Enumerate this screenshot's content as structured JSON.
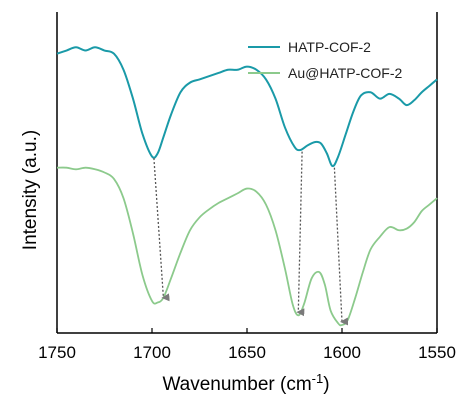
{
  "chart_data": {
    "type": "line",
    "xlabel": "Wavenumber (cm",
    "xlabel_superscript": "-1",
    "xlabel_suffix": ")",
    "ylabel": "Intensity (a.u.)",
    "xlim": [
      1750,
      1550
    ],
    "x_reversed": true,
    "ylim": [
      0,
      1
    ],
    "x_ticks": [
      "1750",
      "1700",
      "1650",
      "1600",
      "1550"
    ],
    "y_ticks_labeled": false,
    "grid": false,
    "legend_position": "top-right",
    "series": [
      {
        "name": "HATP-COF-2",
        "color": "#1a9aa8",
        "x": [
          1750,
          1745,
          1740,
          1735,
          1730,
          1725,
          1720,
          1715,
          1710,
          1705,
          1700,
          1697,
          1694,
          1690,
          1685,
          1680,
          1675,
          1670,
          1665,
          1660,
          1655,
          1650,
          1645,
          1640,
          1635,
          1630,
          1625,
          1622,
          1618,
          1614,
          1611,
          1608,
          1605,
          1602,
          1598,
          1594,
          1590,
          1585,
          1580,
          1575,
          1570,
          1566,
          1562,
          1558,
          1554,
          1550
        ],
        "y": [
          0.87,
          0.88,
          0.89,
          0.88,
          0.89,
          0.88,
          0.87,
          0.82,
          0.73,
          0.62,
          0.55,
          0.56,
          0.61,
          0.68,
          0.75,
          0.78,
          0.79,
          0.8,
          0.81,
          0.82,
          0.82,
          0.83,
          0.82,
          0.79,
          0.73,
          0.64,
          0.58,
          0.57,
          0.585,
          0.595,
          0.59,
          0.56,
          0.52,
          0.55,
          0.62,
          0.69,
          0.74,
          0.75,
          0.73,
          0.745,
          0.73,
          0.71,
          0.725,
          0.75,
          0.77,
          0.79
        ]
      },
      {
        "name": "Au@HATP-COF-2",
        "color": "#8cca8c",
        "x": [
          1750,
          1745,
          1740,
          1735,
          1730,
          1725,
          1720,
          1715,
          1710,
          1705,
          1700,
          1697,
          1694,
          1690,
          1685,
          1680,
          1675,
          1670,
          1665,
          1660,
          1655,
          1650,
          1645,
          1640,
          1635,
          1630,
          1626,
          1623,
          1620,
          1616,
          1612,
          1609,
          1606,
          1602,
          1600,
          1597,
          1593,
          1589,
          1585,
          1580,
          1575,
          1570,
          1566,
          1562,
          1558,
          1554,
          1550
        ],
        "y": [
          0.515,
          0.515,
          0.51,
          0.515,
          0.51,
          0.5,
          0.48,
          0.42,
          0.31,
          0.18,
          0.1,
          0.095,
          0.11,
          0.17,
          0.25,
          0.32,
          0.36,
          0.385,
          0.405,
          0.42,
          0.435,
          0.45,
          0.44,
          0.4,
          0.32,
          0.2,
          0.09,
          0.055,
          0.09,
          0.17,
          0.19,
          0.15,
          0.07,
          0.03,
          0.025,
          0.04,
          0.11,
          0.19,
          0.26,
          0.3,
          0.33,
          0.32,
          0.325,
          0.345,
          0.38,
          0.4,
          0.42
        ]
      }
    ],
    "shift_arrows": [
      {
        "from_x": 1699,
        "from_y": 0.545,
        "to_x": 1694,
        "to_y": 0.11
      },
      {
        "from_x": 1621,
        "from_y": 0.565,
        "to_x": 1623,
        "to_y": 0.065
      },
      {
        "from_x": 1604,
        "from_y": 0.515,
        "to_x": 1600,
        "to_y": 0.035
      }
    ]
  }
}
